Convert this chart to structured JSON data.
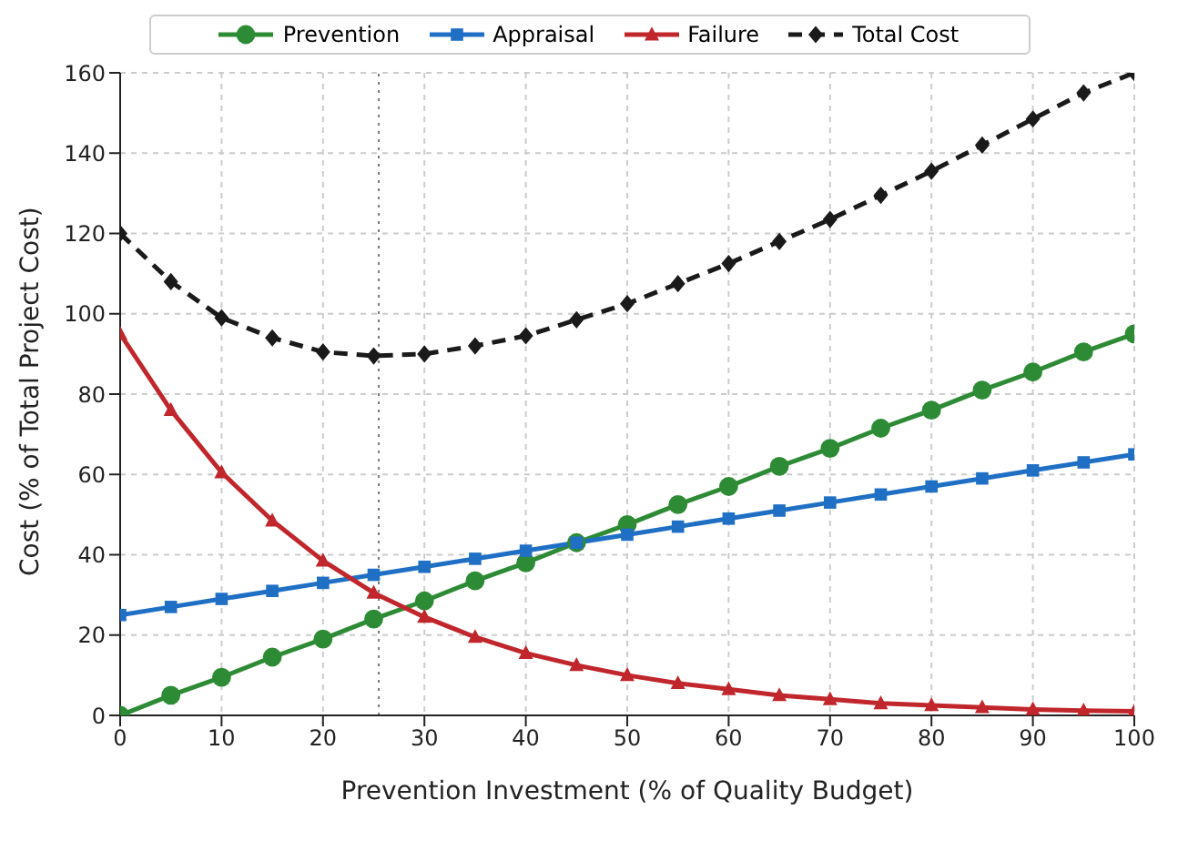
{
  "chart_data": {
    "type": "line",
    "xlabel": "Prevention Investment (% of Quality Budget)",
    "ylabel": "Cost (% of Total Project Cost)",
    "x": [
      0,
      5,
      10,
      15,
      20,
      25,
      30,
      35,
      40,
      45,
      50,
      55,
      60,
      65,
      70,
      75,
      80,
      85,
      90,
      95,
      100
    ],
    "series": [
      {
        "name": "Prevention",
        "color": "#2e8b35",
        "marker": "circle",
        "line_style": "solid",
        "values": [
          0,
          5,
          9.5,
          14.5,
          19,
          24,
          28.5,
          33.5,
          38,
          43,
          47.5,
          52.5,
          57,
          62,
          66.5,
          71.5,
          76,
          81,
          85.5,
          90.5,
          95
        ]
      },
      {
        "name": "Appraisal",
        "color": "#1f6fc5",
        "marker": "square",
        "line_style": "solid",
        "values": [
          25,
          27,
          29,
          31,
          33,
          35,
          37,
          39,
          41,
          43,
          45,
          47,
          49,
          51,
          53,
          55,
          57,
          59,
          61,
          63,
          65
        ]
      },
      {
        "name": "Failure",
        "color": "#c0262b",
        "marker": "triangle",
        "line_style": "solid",
        "values": [
          95,
          76,
          60.5,
          48.5,
          38.5,
          30.5,
          24.5,
          19.5,
          15.5,
          12.5,
          10,
          8,
          6.5,
          5,
          4,
          3,
          2.5,
          2,
          1.5,
          1.2,
          1
        ]
      },
      {
        "name": "Total Cost",
        "color": "#1a1a1a",
        "marker": "diamond",
        "line_style": "dashed",
        "values": [
          120,
          108,
          99,
          94,
          90.5,
          89.5,
          90,
          92,
          94.5,
          98.5,
          102.5,
          107.5,
          112.5,
          118,
          123.5,
          129.5,
          135.5,
          142,
          148.5,
          155,
          160
        ]
      }
    ],
    "xlim": [
      0,
      100
    ],
    "xticks": [
      0,
      10,
      20,
      30,
      40,
      50,
      60,
      70,
      80,
      90,
      100
    ],
    "ylim": [
      0,
      160
    ],
    "yticks": [
      0,
      20,
      40,
      60,
      80,
      100,
      120,
      140,
      160
    ],
    "ref_lines": [
      {
        "axis": "x",
        "value": 25.5,
        "color": "#777777",
        "line_style": "dotted"
      }
    ],
    "grid": true,
    "legend": "top"
  }
}
